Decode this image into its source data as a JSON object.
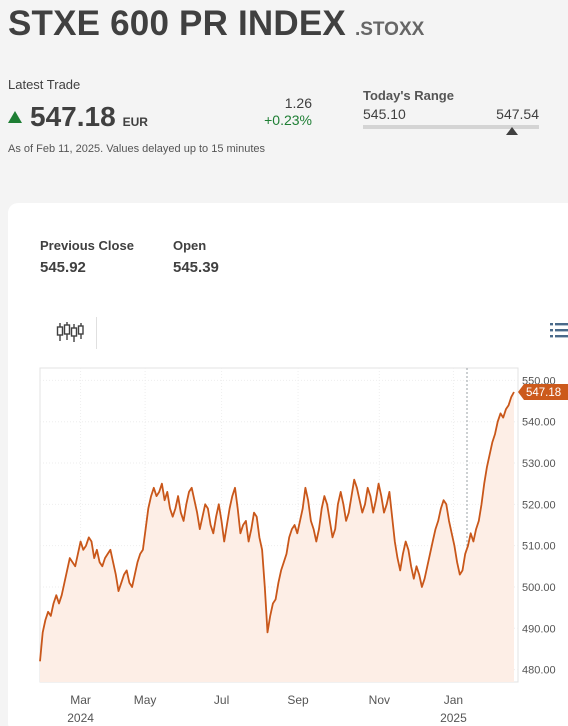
{
  "header": {
    "title": "STXE 600 PR INDEX",
    "ticker": ".STOXX"
  },
  "quote": {
    "latest_label": "Latest Trade",
    "price": "547.18",
    "currency": "EUR",
    "change_abs": "1.26",
    "change_pct": "+0.23%",
    "asof": "As of Feb 11, 2025. Values delayed up to 15 minutes",
    "up_color": "#1e7e34"
  },
  "range": {
    "label": "Today's Range",
    "low": "545.10",
    "high": "547.54"
  },
  "stats": {
    "prev_close_label": "Previous Close",
    "prev_close_value": "545.92",
    "open_label": "Open",
    "open_value": "545.39"
  },
  "icons": {
    "chart_type": "candlestick-icon",
    "menu": "menu-list-icon"
  },
  "chart_data": {
    "type": "area",
    "title": "",
    "xlabel": "",
    "ylabel": "",
    "x_ticks": [
      {
        "label": "Mar",
        "sub": "2024"
      },
      {
        "label": "May",
        "sub": ""
      },
      {
        "label": "Jul",
        "sub": ""
      },
      {
        "label": "Sep",
        "sub": ""
      },
      {
        "label": "Nov",
        "sub": ""
      },
      {
        "label": "Jan",
        "sub": "2025"
      }
    ],
    "y_ticks": [
      "480.00",
      "490.00",
      "500.00",
      "510.00",
      "520.00",
      "530.00",
      "540.00",
      "550.00"
    ],
    "ylim": [
      477,
      553
    ],
    "grid": true,
    "last_value_label": "547.18",
    "line_color": "#c9571a",
    "fill_color": "#fdeee6",
    "label_color": "#cc5a1c",
    "series": [
      {
        "values": [
          482,
          489,
          492,
          494,
          493,
          496,
          498,
          496,
          498,
          501,
          504,
          507,
          506,
          505,
          508,
          511,
          509,
          510,
          512,
          511,
          507,
          509,
          506,
          505,
          507,
          508,
          509,
          506,
          503,
          499,
          501,
          503,
          504,
          501,
          500,
          503,
          506,
          508,
          509,
          514,
          519,
          522,
          524,
          522,
          523,
          525,
          521,
          523,
          519,
          517,
          519,
          522,
          518,
          516,
          520,
          523,
          524,
          521,
          518,
          514,
          517,
          520,
          519,
          515,
          513,
          517,
          520,
          516,
          511,
          515,
          519,
          522,
          524,
          519,
          513,
          515,
          516,
          511,
          514,
          518,
          517,
          512,
          509,
          500,
          489,
          493,
          496,
          497,
          501,
          504,
          506,
          508,
          512,
          514,
          515,
          513,
          516,
          519,
          524,
          521,
          516,
          514,
          511,
          514,
          519,
          522,
          520,
          516,
          512,
          514,
          520,
          523,
          520,
          516,
          518,
          522,
          526,
          524,
          521,
          518,
          520,
          524,
          522,
          518,
          521,
          525,
          522,
          518,
          520,
          523,
          517,
          511,
          507,
          504,
          508,
          511,
          509,
          505,
          502,
          505,
          503,
          500,
          502,
          505,
          508,
          511,
          514,
          516,
          519,
          521,
          520,
          516,
          513,
          510,
          506,
          503,
          504,
          508,
          510,
          513,
          511,
          514,
          516,
          520,
          525,
          529,
          532,
          535,
          537,
          540,
          542,
          541,
          543,
          544,
          546,
          547.18
        ]
      }
    ]
  }
}
